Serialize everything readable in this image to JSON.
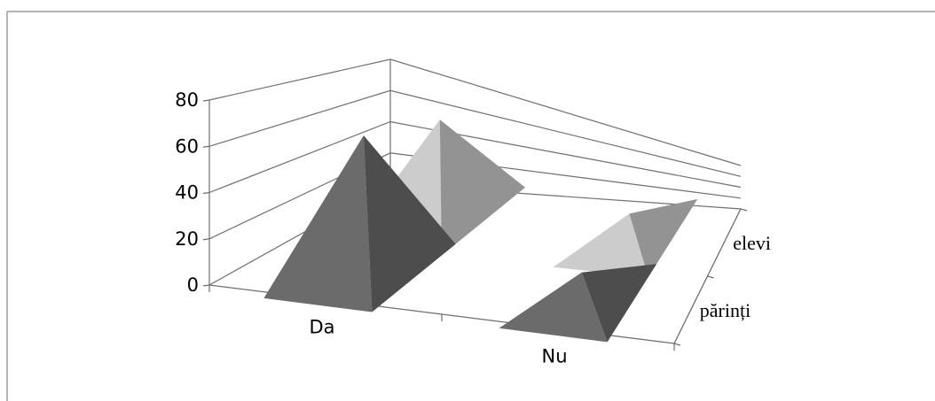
{
  "chart_data": {
    "type": "bar",
    "subtype": "3d-pyramid",
    "categories": [
      "Da",
      "Nu"
    ],
    "series": [
      {
        "name": "elevi",
        "values": [
          67,
          23
        ],
        "color": "#cccccc"
      },
      {
        "name": "părinți",
        "values": [
          77,
          23
        ],
        "color": "#6b6b6b"
      }
    ],
    "ylim": [
      0,
      80
    ],
    "yticks": [
      "0",
      "20",
      "40",
      "60",
      "80"
    ],
    "grid": true,
    "legend": "none"
  }
}
